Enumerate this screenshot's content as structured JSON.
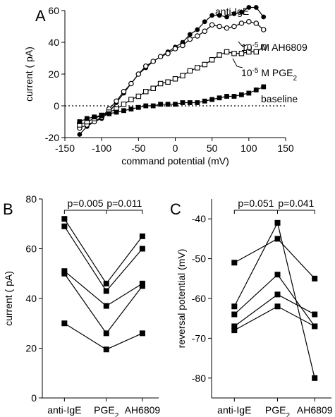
{
  "chart_data": [
    {
      "panel": "A",
      "type": "line",
      "xlabel": "command potential (mV)",
      "ylabel": "current ( pA)",
      "xlim": [
        -150,
        150
      ],
      "ylim": [
        -20,
        60
      ],
      "xticks": [
        "-150",
        "-100",
        "-50",
        "0",
        "50",
        "100",
        "150"
      ],
      "yticks": [
        "-20",
        "0",
        "20",
        "40",
        "60"
      ],
      "reference_line": 0,
      "series": [
        {
          "name": "anti-IgE",
          "marker": "filled-circle",
          "x": [
            -130,
            -120,
            -110,
            -100,
            -90,
            -80,
            -70,
            -60,
            -50,
            -40,
            -30,
            -20,
            -10,
            0,
            10,
            20,
            30,
            40,
            50,
            60,
            70,
            80,
            90,
            100,
            110,
            120
          ],
          "y": [
            -18,
            -13,
            -10,
            -8,
            -4,
            2,
            8,
            14,
            20,
            24,
            28,
            31,
            34,
            37,
            40,
            45,
            48,
            53,
            57,
            57,
            56,
            58,
            59,
            62,
            62,
            56
          ]
        },
        {
          "name": "10-5 M AH6809",
          "name_parts": [
            "10",
            "-5",
            " M AH6809"
          ],
          "marker": "open-circle",
          "x": [
            -130,
            -120,
            -110,
            -100,
            -90,
            -80,
            -70,
            -60,
            -50,
            -40,
            -30,
            -20,
            -10,
            0,
            10,
            20,
            30,
            40,
            50,
            60,
            70,
            80,
            90,
            100,
            110,
            120
          ],
          "y": [
            -14,
            -12,
            -10,
            -7,
            -2,
            3,
            9,
            14,
            20,
            25,
            28,
            31,
            33,
            36,
            38,
            42,
            44,
            47,
            51,
            50,
            49,
            50,
            52,
            53,
            52,
            48
          ]
        },
        {
          "name": "10-5 M PGE2",
          "name_parts": [
            "10",
            "-5",
            " M PGE",
            "2"
          ],
          "marker": "open-square",
          "x": [
            -130,
            -120,
            -110,
            -100,
            -90,
            -80,
            -70,
            -60,
            -50,
            -40,
            -30,
            -20,
            -10,
            0,
            10,
            20,
            30,
            40,
            50,
            60,
            70,
            80,
            90,
            100,
            110,
            120
          ],
          "y": [
            -12,
            -10,
            -8,
            -6,
            -4,
            -2,
            1,
            4,
            6,
            9,
            11,
            14,
            15,
            17,
            19,
            22,
            24,
            26,
            29,
            32,
            34,
            33,
            33,
            34,
            34,
            37
          ]
        },
        {
          "name": "baseline",
          "marker": "filled-square",
          "x": [
            -130,
            -120,
            -110,
            -100,
            -90,
            -80,
            -70,
            -60,
            -50,
            -40,
            -30,
            -20,
            -10,
            0,
            10,
            20,
            30,
            40,
            50,
            60,
            70,
            80,
            90,
            100,
            110,
            120
          ],
          "y": [
            -10,
            -8,
            -7,
            -6,
            -5,
            -4,
            -3,
            -2,
            -1,
            0,
            0,
            1,
            1,
            1,
            2,
            2,
            2,
            3,
            4,
            5,
            6,
            6,
            7,
            8,
            10,
            12
          ]
        }
      ]
    },
    {
      "panel": "B",
      "type": "line",
      "categories": [
        "anti-IgE",
        "PGE2",
        "AH6809"
      ],
      "category_parts": [
        [
          "anti-IgE"
        ],
        [
          "PGE",
          "2"
        ],
        [
          "AH6809"
        ]
      ],
      "ylabel": "current ( pA)",
      "ylim": [
        0,
        80
      ],
      "yticks": [
        "0",
        "20",
        "40",
        "60",
        "80"
      ],
      "significance": [
        "p=0.005",
        "p=0.011"
      ],
      "series": [
        {
          "values": [
            72,
            46,
            65
          ]
        },
        {
          "values": [
            69,
            43,
            60
          ]
        },
        {
          "values": [
            51,
            37,
            46
          ]
        },
        {
          "values": [
            50,
            26,
            45
          ]
        },
        {
          "values": [
            30,
            19.5,
            26
          ]
        }
      ]
    },
    {
      "panel": "C",
      "type": "line",
      "categories": [
        "anti-IgE",
        "PGE2",
        "AH6809"
      ],
      "category_parts": [
        [
          "anti-IgE"
        ],
        [
          "PGE",
          "2"
        ],
        [
          "AH6809"
        ]
      ],
      "ylabel": "reversal potential (mV)",
      "ylim": [
        -85,
        -35
      ],
      "yticks": [
        "-40",
        "-50",
        "-60",
        "-70",
        "-80"
      ],
      "significance": [
        "p=0.051",
        "p=0.041"
      ],
      "series": [
        {
          "values": [
            -51,
            -45,
            -55
          ]
        },
        {
          "values": [
            -62,
            -41,
            -80
          ]
        },
        {
          "values": [
            -64,
            -54,
            -67
          ]
        },
        {
          "values": [
            -67,
            -59,
            -64
          ]
        },
        {
          "values": [
            -68,
            -62,
            -67
          ]
        }
      ]
    }
  ]
}
